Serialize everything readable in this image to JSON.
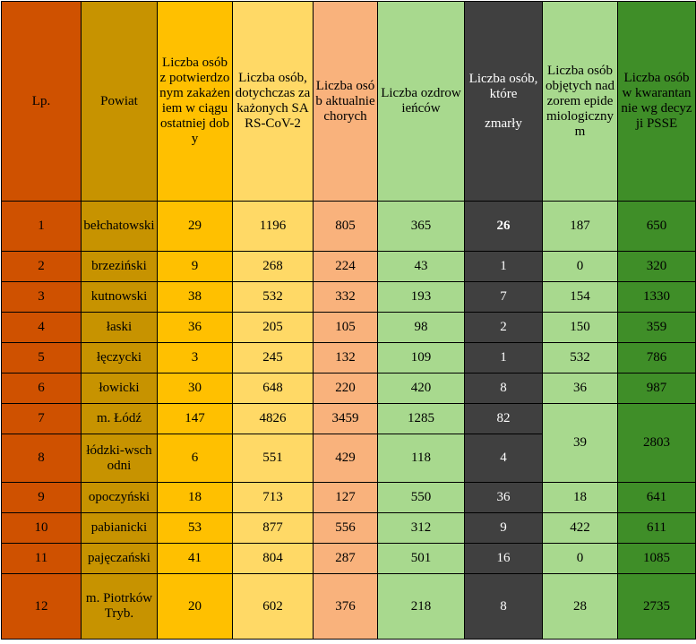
{
  "headers": {
    "lp": "Lp.",
    "powiat": "Powiat",
    "potwierdzone_doba": "Liczba osób z potwierdzonym zakażeniem w ciągu ostatniej doby",
    "dotychczas": "Liczba osób, dotychczas zakażonych SARS-CoV-2",
    "aktualnie": "Liczba osób aktualnie chorych",
    "ozdrowiency": "Liczba ozdrowieńców",
    "zmarly_line1": "Liczba osób, które",
    "zmarly_line2": "zmarły",
    "nadzor": "Liczba osób objętych nadzorem epidemiologicznym",
    "kwarantanna": "Liczba osób w kwarantannie wg decyzji PSSE"
  },
  "rows": [
    {
      "lp": "1",
      "powiat": "bełchatowski",
      "doba": "29",
      "dotychczas": "1196",
      "aktualnie": "805",
      "ozdrowiency": "365",
      "zmarli": "26",
      "nadzor": "187",
      "kwarantanna": "650"
    },
    {
      "lp": "2",
      "powiat": "brzeziński",
      "doba": "9",
      "dotychczas": "268",
      "aktualnie": "224",
      "ozdrowiency": "43",
      "zmarli": "1",
      "nadzor": "0",
      "kwarantanna": "320"
    },
    {
      "lp": "3",
      "powiat": "kutnowski",
      "doba": "38",
      "dotychczas": "532",
      "aktualnie": "332",
      "ozdrowiency": "193",
      "zmarli": "7",
      "nadzor": "154",
      "kwarantanna": "1330"
    },
    {
      "lp": "4",
      "powiat": "łaski",
      "doba": "36",
      "dotychczas": "205",
      "aktualnie": "105",
      "ozdrowiency": "98",
      "zmarli": "2",
      "nadzor": "150",
      "kwarantanna": "359"
    },
    {
      "lp": "5",
      "powiat": "łęczycki",
      "doba": "3",
      "dotychczas": "245",
      "aktualnie": "132",
      "ozdrowiency": "109",
      "zmarli": "1",
      "nadzor": "532",
      "kwarantanna": "786"
    },
    {
      "lp": "6",
      "powiat": "łowicki",
      "doba": "30",
      "dotychczas": "648",
      "aktualnie": "220",
      "ozdrowiency": "420",
      "zmarli": "8",
      "nadzor": "36",
      "kwarantanna": "987"
    },
    {
      "lp": "7",
      "powiat": "m. Łódź",
      "doba": "147",
      "dotychczas": "4826",
      "aktualnie": "3459",
      "ozdrowiency": "1285",
      "zmarli": "82",
      "nadzor": "39",
      "kwarantanna": "2803"
    },
    {
      "lp": "8",
      "powiat": "łódzki-wschodni",
      "doba": "6",
      "dotychczas": "551",
      "aktualnie": "429",
      "ozdrowiency": "118",
      "zmarli": "4"
    },
    {
      "lp": "9",
      "powiat": "opoczyński",
      "doba": "18",
      "dotychczas": "713",
      "aktualnie": "127",
      "ozdrowiency": "550",
      "zmarli": "36",
      "nadzor": "18",
      "kwarantanna": "641"
    },
    {
      "lp": "10",
      "powiat": "pabianicki",
      "doba": "53",
      "dotychczas": "877",
      "aktualnie": "556",
      "ozdrowiency": "312",
      "zmarli": "9",
      "nadzor": "422",
      "kwarantanna": "611"
    },
    {
      "lp": "11",
      "powiat": "pajęczański",
      "doba": "41",
      "dotychczas": "804",
      "aktualnie": "287",
      "ozdrowiency": "501",
      "zmarli": "16",
      "nadzor": "0",
      "kwarantanna": "1085"
    },
    {
      "lp": "12",
      "powiat": "m. Piotrków Tryb.",
      "doba": "20",
      "dotychczas": "602",
      "aktualnie": "376",
      "ozdrowiency": "218",
      "zmarli": "8",
      "nadzor": "28",
      "kwarantanna": "2735"
    }
  ],
  "colors": {
    "lp": "#cf5100",
    "powiat": "#c79300",
    "doba": "#ffc000",
    "dotychczas": "#ffd966",
    "aktualnie": "#f9b27c",
    "ozdrowiency": "#a8d98e",
    "zmarli": "#404040",
    "nadzor": "#a8d98e",
    "kwarantanna": "#3f8e28"
  }
}
